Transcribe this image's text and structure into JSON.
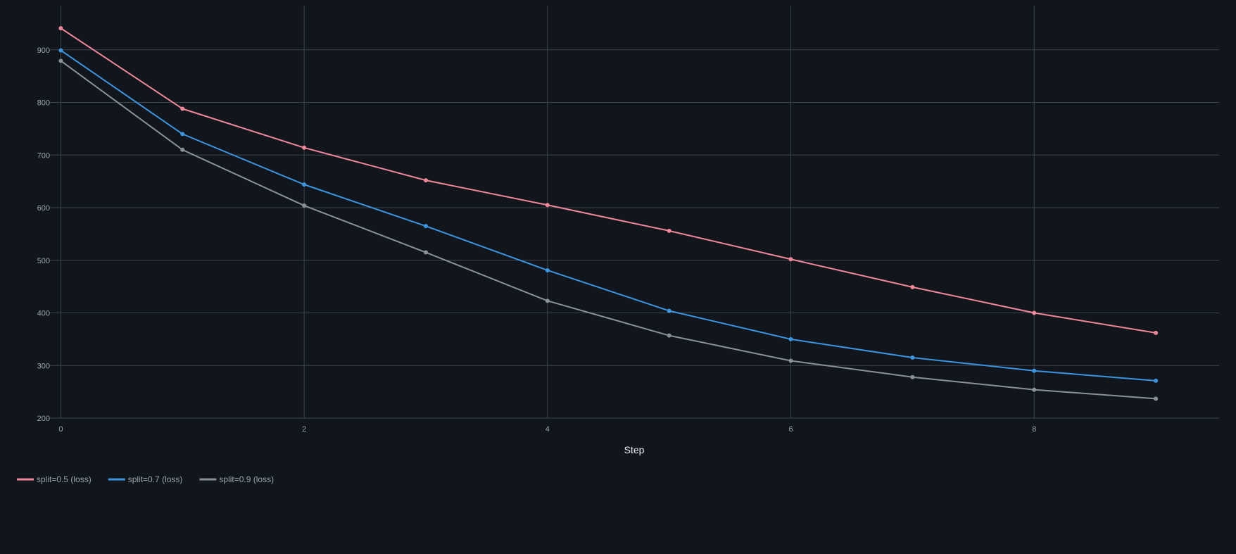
{
  "chart_data": {
    "type": "line",
    "title": "",
    "xlabel": "Step",
    "ylabel": "",
    "x": [
      0,
      1,
      2,
      3,
      4,
      5,
      6,
      7,
      8,
      9
    ],
    "xlim": [
      -0.5,
      9.52
    ],
    "ylim": [
      200,
      984
    ],
    "x_ticks": [
      0,
      2,
      4,
      6,
      8
    ],
    "y_ticks": [
      200,
      300,
      400,
      500,
      600,
      700,
      800,
      900
    ],
    "grid": true,
    "legend_position": "bottom-left",
    "series": [
      {
        "name": "split=0.5 (loss)",
        "color": "#f0879a",
        "values": [
          941,
          788,
          714,
          652,
          605,
          556,
          502,
          449,
          400,
          362
        ]
      },
      {
        "name": "split=0.7 (loss)",
        "color": "#3b95e0",
        "values": [
          899,
          740,
          644,
          565,
          481,
          404,
          350,
          315,
          290,
          271
        ]
      },
      {
        "name": "split=0.9 (loss)",
        "color": "#8a9198",
        "values": [
          879,
          710,
          604,
          515,
          423,
          357,
          309,
          278,
          254,
          237
        ]
      }
    ]
  }
}
